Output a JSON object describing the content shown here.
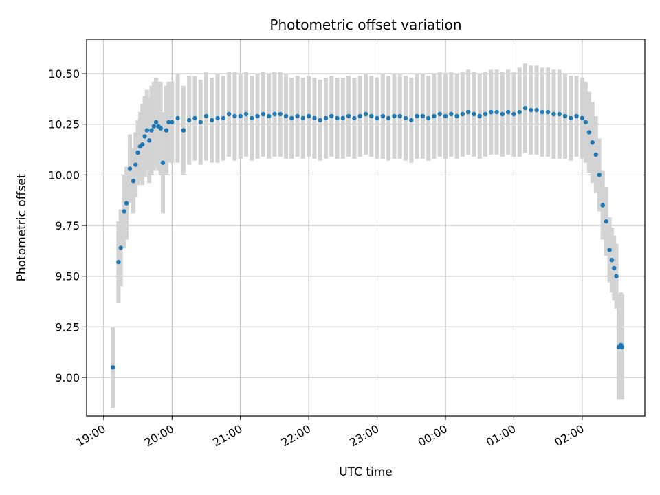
{
  "chart_data": {
    "type": "scatter",
    "title": "Photometric offset variation",
    "xlabel": "UTC time",
    "ylabel": "Photometric offset",
    "grid": true,
    "xlim": [
      "18:45",
      "02:55"
    ],
    "ylim": [
      8.81,
      10.67
    ],
    "x_ticks": [
      "19:00",
      "20:00",
      "21:00",
      "22:00",
      "23:00",
      "00:00",
      "01:00",
      "02:00"
    ],
    "y_ticks": [
      "9.00",
      "9.25",
      "9.50",
      "9.75",
      "10.00",
      "10.25",
      "10.50"
    ],
    "marker_color": "#1f77b4",
    "errorbar_color": "#d3d3d3",
    "series": [
      {
        "x": [
          "19:08",
          "19:13",
          "19:15",
          "19:18",
          "19:20",
          "19:23",
          "19:26",
          "19:28",
          "19:30",
          "19:32",
          "19:34",
          "19:36",
          "19:38",
          "19:40",
          "19:42",
          "19:44",
          "19:46",
          "19:48",
          "19:50",
          "19:52",
          "19:55",
          "19:57",
          "20:00",
          "20:05",
          "20:10",
          "20:15",
          "20:20",
          "20:25",
          "20:30",
          "20:35",
          "20:40",
          "20:45",
          "20:50",
          "20:55",
          "21:00",
          "21:05",
          "21:10",
          "21:15",
          "21:20",
          "21:25",
          "21:30",
          "21:35",
          "21:40",
          "21:45",
          "21:50",
          "21:55",
          "22:00",
          "22:05",
          "22:10",
          "22:15",
          "22:20",
          "22:25",
          "22:30",
          "22:35",
          "22:40",
          "22:45",
          "22:50",
          "22:55",
          "23:00",
          "23:05",
          "23:10",
          "23:15",
          "23:20",
          "23:25",
          "23:30",
          "23:35",
          "23:40",
          "23:45",
          "23:50",
          "23:55",
          "00:00",
          "00:05",
          "00:10",
          "00:15",
          "00:20",
          "00:25",
          "00:30",
          "00:35",
          "00:40",
          "00:45",
          "00:50",
          "00:55",
          "01:00",
          "01:05",
          "01:10",
          "01:15",
          "01:20",
          "01:25",
          "01:30",
          "01:35",
          "01:40",
          "01:45",
          "01:50",
          "01:55",
          "02:00",
          "02:03",
          "02:06",
          "02:09",
          "02:12",
          "02:15",
          "02:18",
          "02:21",
          "02:24",
          "02:26",
          "02:28",
          "02:30",
          "02:32",
          "02:34",
          "02:35"
        ],
        "y": [
          9.05,
          9.57,
          9.64,
          9.82,
          9.86,
          10.03,
          9.97,
          10.05,
          10.11,
          10.14,
          10.15,
          10.19,
          10.22,
          10.17,
          10.22,
          10.24,
          10.26,
          10.24,
          10.23,
          10.06,
          10.22,
          10.26,
          10.26,
          10.28,
          10.22,
          10.27,
          10.28,
          10.26,
          10.29,
          10.27,
          10.28,
          10.28,
          10.3,
          10.29,
          10.29,
          10.3,
          10.28,
          10.29,
          10.3,
          10.29,
          10.3,
          10.3,
          10.29,
          10.28,
          10.29,
          10.28,
          10.29,
          10.28,
          10.27,
          10.28,
          10.29,
          10.28,
          10.28,
          10.29,
          10.28,
          10.29,
          10.3,
          10.29,
          10.28,
          10.29,
          10.28,
          10.29,
          10.29,
          10.28,
          10.27,
          10.29,
          10.29,
          10.28,
          10.29,
          10.3,
          10.29,
          10.3,
          10.29,
          10.3,
          10.31,
          10.3,
          10.29,
          10.3,
          10.31,
          10.31,
          10.3,
          10.31,
          10.3,
          10.31,
          10.33,
          10.32,
          10.32,
          10.31,
          10.31,
          10.3,
          10.3,
          10.29,
          10.28,
          10.29,
          10.28,
          10.26,
          10.21,
          10.16,
          10.1,
          10.0,
          9.85,
          9.77,
          9.63,
          9.58,
          9.54,
          9.5,
          9.15,
          9.16,
          9.15
        ],
        "err": [
          0.2,
          0.2,
          0.19,
          0.18,
          0.18,
          0.17,
          0.16,
          0.16,
          0.16,
          0.17,
          0.2,
          0.2,
          0.2,
          0.21,
          0.22,
          0.22,
          0.22,
          0.22,
          0.23,
          0.25,
          0.22,
          0.2,
          0.2,
          0.22,
          0.22,
          0.22,
          0.21,
          0.21,
          0.22,
          0.21,
          0.22,
          0.21,
          0.21,
          0.22,
          0.21,
          0.21,
          0.21,
          0.21,
          0.21,
          0.21,
          0.21,
          0.21,
          0.21,
          0.2,
          0.2,
          0.2,
          0.2,
          0.2,
          0.2,
          0.2,
          0.2,
          0.2,
          0.2,
          0.2,
          0.2,
          0.2,
          0.2,
          0.2,
          0.2,
          0.21,
          0.21,
          0.21,
          0.21,
          0.21,
          0.21,
          0.21,
          0.21,
          0.21,
          0.21,
          0.21,
          0.21,
          0.21,
          0.21,
          0.21,
          0.21,
          0.21,
          0.21,
          0.21,
          0.21,
          0.21,
          0.21,
          0.21,
          0.21,
          0.22,
          0.22,
          0.22,
          0.22,
          0.22,
          0.22,
          0.22,
          0.22,
          0.21,
          0.21,
          0.2,
          0.2,
          0.2,
          0.2,
          0.2,
          0.19,
          0.18,
          0.17,
          0.17,
          0.16,
          0.16,
          0.16,
          0.16,
          0.26,
          0.26,
          0.26
        ]
      }
    ]
  }
}
